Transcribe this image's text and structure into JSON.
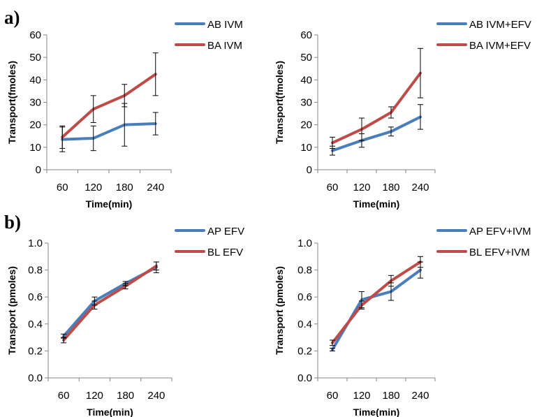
{
  "panel_labels": [
    "a)",
    "b)"
  ],
  "colors": {
    "blue": "#4a7ebb",
    "red": "#be4b48",
    "axis": "#868686",
    "errorbar": "#000000"
  },
  "chart_data": [
    {
      "type": "line",
      "panel": "a)",
      "categories": [
        "60",
        "120",
        "180",
        "240"
      ],
      "xlabel": "Time(min)",
      "ylabel": "Transport(fmoles)",
      "ylim": [
        0,
        60
      ],
      "yticks": [
        "0",
        "10",
        "20",
        "30",
        "40",
        "50",
        "60"
      ],
      "legend_position": "right",
      "series": [
        {
          "name": "AB IVM",
          "color": "#4a7ebb",
          "values": [
            13.5,
            14,
            20,
            20.5
          ],
          "errors": [
            5.5,
            5.5,
            9.5,
            5
          ]
        },
        {
          "name": "BA IVM",
          "color": "#be4b48",
          "values": [
            14.5,
            27,
            33,
            42.5
          ],
          "errors": [
            5,
            6,
            5,
            9.5
          ]
        }
      ]
    },
    {
      "type": "line",
      "panel": "a)",
      "categories": [
        "60",
        "120",
        "180",
        "240"
      ],
      "xlabel": "Time(min)",
      "ylabel": "Transport(fmoles)",
      "ylim": [
        0,
        60
      ],
      "yticks": [
        "0",
        "10",
        "20",
        "30",
        "40",
        "50",
        "60"
      ],
      "legend_position": "right",
      "series": [
        {
          "name": "AB IVM+EFV",
          "color": "#4a7ebb",
          "values": [
            8.5,
            13,
            17,
            23.5
          ],
          "errors": [
            2,
            3,
            2,
            5.5
          ]
        },
        {
          "name": "BA IVM+EFV",
          "color": "#be4b48",
          "values": [
            12,
            18,
            25.5,
            43
          ],
          "errors": [
            2.5,
            5,
            2.5,
            11
          ]
        }
      ]
    },
    {
      "type": "line",
      "panel": "b)",
      "categories": [
        "60",
        "120",
        "180",
        "240"
      ],
      "xlabel": "Time(min)",
      "ylabel": "Transport (pmoles)",
      "ylim": [
        0,
        1.0
      ],
      "yticks": [
        "0.0",
        "0.2",
        "0.4",
        "0.6",
        "0.8",
        "1.0"
      ],
      "legend_position": "right",
      "series": [
        {
          "name": "AP EFV",
          "color": "#4a7ebb",
          "values": [
            0.31,
            0.57,
            0.7,
            0.82
          ],
          "errors": [
            0.015,
            0.03,
            0.015,
            0.04
          ]
        },
        {
          "name": "BL EFV",
          "color": "#be4b48",
          "values": [
            0.28,
            0.54,
            0.68,
            0.83
          ],
          "errors": [
            0.02,
            0.03,
            0.02,
            0.03
          ]
        }
      ]
    },
    {
      "type": "line",
      "panel": "b)",
      "categories": [
        "60",
        "120",
        "180",
        "240"
      ],
      "xlabel": "Time(min)",
      "ylabel": "Transport (pmoles)",
      "ylim": [
        0,
        1.0
      ],
      "yticks": [
        "0.0",
        "0.2",
        "0.4",
        "0.6",
        "0.8",
        "1.0"
      ],
      "legend_position": "right",
      "series": [
        {
          "name": "AP EFV+IVM",
          "color": "#4a7ebb",
          "values": [
            0.21,
            0.58,
            0.64,
            0.8
          ],
          "errors": [
            0.01,
            0.06,
            0.065,
            0.06
          ]
        },
        {
          "name": "BL EFV+IVM",
          "color": "#be4b48",
          "values": [
            0.26,
            0.54,
            0.72,
            0.86
          ],
          "errors": [
            0.02,
            0.03,
            0.04,
            0.04
          ]
        }
      ]
    }
  ]
}
